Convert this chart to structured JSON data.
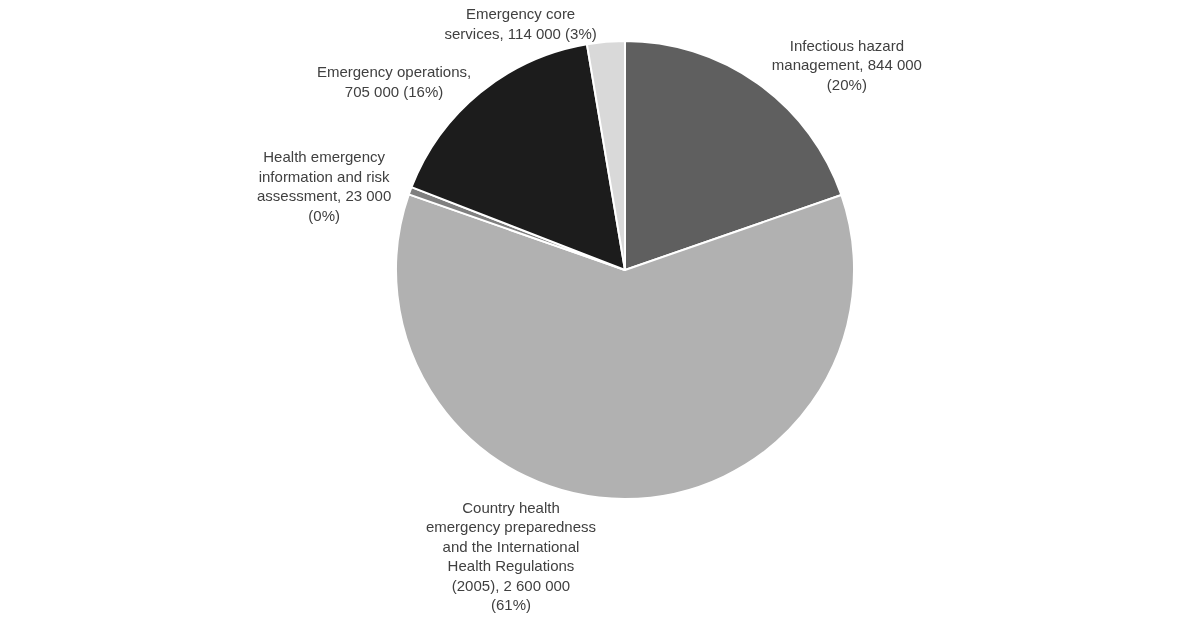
{
  "chart_data": {
    "type": "pie",
    "categories": [
      "Infectious hazard management, 844 000 (20%)",
      "Country health emergency preparedness and the International Health Regulations (2005), 2 600 000 (61%)",
      "Health emergency information and risk assessment, 23 000 (0%)",
      "Emergency operations, 705 000 (16%)",
      "Emergency core services, 114 000 (3%)"
    ],
    "values": [
      844000,
      2600000,
      23000,
      705000,
      114000
    ],
    "colors": [
      "#5f5f5f",
      "#b1b1b1",
      "#7f7f7f",
      "#1c1c1c",
      "#d9d9d9"
    ]
  }
}
